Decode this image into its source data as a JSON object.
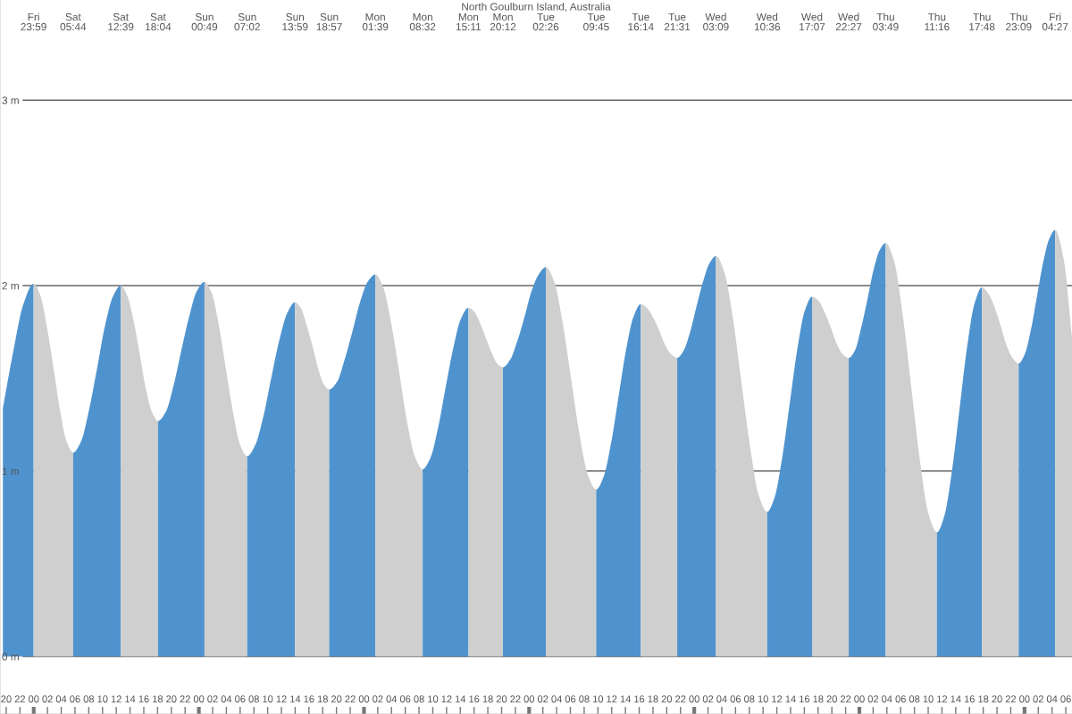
{
  "chart_data": {
    "type": "area",
    "title": "North Goulburn Island, Australia",
    "xlim": [
      19.1,
      174.9
    ],
    "ylim": [
      -0.31,
      3.54
    ],
    "xticks": [
      {
        "value": 20,
        "label": "20"
      },
      {
        "value": 22,
        "label": "22"
      },
      {
        "value": 24,
        "label": "00"
      },
      {
        "value": 26,
        "label": "02"
      },
      {
        "value": 28,
        "label": "04"
      },
      {
        "value": 30,
        "label": "06"
      },
      {
        "value": 32,
        "label": "08"
      },
      {
        "value": 34,
        "label": "10"
      },
      {
        "value": 36,
        "label": "12"
      },
      {
        "value": 38,
        "label": "14"
      },
      {
        "value": 40,
        "label": "16"
      },
      {
        "value": 42,
        "label": "18"
      },
      {
        "value": 44,
        "label": "20"
      },
      {
        "value": 46,
        "label": "22"
      },
      {
        "value": 48,
        "label": "00"
      },
      {
        "value": 50,
        "label": "02"
      },
      {
        "value": 52,
        "label": "04"
      },
      {
        "value": 54,
        "label": "06"
      },
      {
        "value": 56,
        "label": "08"
      },
      {
        "value": 58,
        "label": "10"
      },
      {
        "value": 60,
        "label": "12"
      },
      {
        "value": 62,
        "label": "14"
      },
      {
        "value": 64,
        "label": "16"
      },
      {
        "value": 66,
        "label": "18"
      },
      {
        "value": 68,
        "label": "20"
      },
      {
        "value": 70,
        "label": "22"
      },
      {
        "value": 72,
        "label": "00"
      },
      {
        "value": 74,
        "label": "02"
      },
      {
        "value": 76,
        "label": "04"
      },
      {
        "value": 78,
        "label": "06"
      },
      {
        "value": 80,
        "label": "08"
      },
      {
        "value": 82,
        "label": "10"
      },
      {
        "value": 84,
        "label": "12"
      },
      {
        "value": 86,
        "label": "14"
      },
      {
        "value": 88,
        "label": "16"
      },
      {
        "value": 90,
        "label": "18"
      },
      {
        "value": 92,
        "label": "20"
      },
      {
        "value": 94,
        "label": "22"
      },
      {
        "value": 96,
        "label": "00"
      },
      {
        "value": 98,
        "label": "02"
      },
      {
        "value": 100,
        "label": "04"
      },
      {
        "value": 102,
        "label": "06"
      },
      {
        "value": 104,
        "label": "08"
      },
      {
        "value": 106,
        "label": "10"
      },
      {
        "value": 108,
        "label": "12"
      },
      {
        "value": 110,
        "label": "14"
      },
      {
        "value": 112,
        "label": "16"
      },
      {
        "value": 114,
        "label": "18"
      },
      {
        "value": 116,
        "label": "20"
      },
      {
        "value": 118,
        "label": "22"
      },
      {
        "value": 120,
        "label": "00"
      },
      {
        "value": 122,
        "label": "02"
      },
      {
        "value": 124,
        "label": "04"
      },
      {
        "value": 126,
        "label": "06"
      },
      {
        "value": 128,
        "label": "08"
      },
      {
        "value": 130,
        "label": "10"
      },
      {
        "value": 132,
        "label": "12"
      },
      {
        "value": 134,
        "label": "14"
      },
      {
        "value": 136,
        "label": "16"
      },
      {
        "value": 138,
        "label": "18"
      },
      {
        "value": 140,
        "label": "20"
      },
      {
        "value": 142,
        "label": "22"
      },
      {
        "value": 144,
        "label": "00"
      },
      {
        "value": 146,
        "label": "02"
      },
      {
        "value": 148,
        "label": "04"
      },
      {
        "value": 150,
        "label": "06"
      },
      {
        "value": 152,
        "label": "08"
      },
      {
        "value": 154,
        "label": "10"
      },
      {
        "value": 156,
        "label": "12"
      },
      {
        "value": 158,
        "label": "14"
      },
      {
        "value": 160,
        "label": "16"
      },
      {
        "value": 162,
        "label": "18"
      },
      {
        "value": 164,
        "label": "20"
      },
      {
        "value": 166,
        "label": "22"
      },
      {
        "value": 168,
        "label": "00"
      },
      {
        "value": 170,
        "label": "02"
      },
      {
        "value": 172,
        "label": "04"
      },
      {
        "value": 174,
        "label": "06"
      }
    ],
    "yticks": [
      {
        "value": 0,
        "label": "0 m"
      },
      {
        "value": 1,
        "label": "1 m"
      },
      {
        "value": 2,
        "label": "2 m"
      },
      {
        "value": 3,
        "label": "3 m"
      }
    ],
    "grid": "y",
    "series": [
      {
        "color": "#4f93ce",
        "x": [
          19.52,
          21.0,
          22.5,
          23.98
        ],
        "values": [
          1.34,
          1.64,
          1.9,
          2.01
        ]
      },
      {
        "color": "#cfcfcf",
        "x": [
          23.98,
          24.94,
          25.9,
          26.86,
          27.81,
          28.77,
          29.73
        ],
        "values": [
          2.01,
          1.95,
          1.78,
          1.56,
          1.33,
          1.16,
          1.1
        ]
      },
      {
        "color": "#4f93ce",
        "x": [
          29.73,
          30.88,
          32.04,
          33.19,
          34.34,
          35.5,
          36.65
        ],
        "values": [
          1.1,
          1.16,
          1.33,
          1.55,
          1.78,
          1.94,
          2.0
        ]
      },
      {
        "color": "#cfcfcf",
        "x": [
          36.65,
          37.55,
          38.46,
          39.36,
          40.26,
          41.17,
          42.07
        ],
        "values": [
          2.0,
          1.95,
          1.82,
          1.64,
          1.45,
          1.32,
          1.27
        ]
      },
      {
        "color": "#4f93ce",
        "x": [
          42.07,
          43.2,
          44.32,
          45.45,
          46.57,
          47.7,
          48.82
        ],
        "values": [
          1.27,
          1.32,
          1.46,
          1.65,
          1.83,
          1.97,
          2.02
        ]
      },
      {
        "color": "#cfcfcf",
        "x": [
          48.82,
          49.86,
          50.89,
          51.93,
          52.96,
          54.0,
          55.03
        ],
        "values": [
          2.02,
          1.96,
          1.79,
          1.55,
          1.32,
          1.14,
          1.08
        ]
      },
      {
        "color": "#4f93ce",
        "x": [
          55.03,
          56.19,
          57.35,
          58.51,
          59.66,
          60.82,
          61.98
        ],
        "values": [
          1.08,
          1.14,
          1.29,
          1.5,
          1.7,
          1.85,
          1.91
        ]
      },
      {
        "color": "#cfcfcf",
        "x": [
          61.98,
          62.81,
          63.64,
          64.47,
          65.29,
          66.12,
          66.95
        ],
        "values": [
          1.91,
          1.88,
          1.79,
          1.68,
          1.56,
          1.47,
          1.44
        ]
      },
      {
        "color": "#4f93ce",
        "x": [
          66.95,
          68.07,
          69.18,
          70.3,
          71.42,
          72.53,
          73.65
        ],
        "values": [
          1.44,
          1.48,
          1.6,
          1.75,
          1.91,
          2.02,
          2.06
        ]
      },
      {
        "color": "#cfcfcf",
        "x": [
          73.65,
          74.8,
          75.94,
          77.09,
          78.24,
          79.38,
          80.53
        ],
        "values": [
          2.06,
          1.99,
          1.8,
          1.54,
          1.27,
          1.08,
          1.01
        ]
      },
      {
        "color": "#4f93ce",
        "x": [
          80.53,
          81.64,
          82.75,
          83.86,
          84.96,
          86.07,
          87.18
        ],
        "values": [
          1.01,
          1.07,
          1.23,
          1.45,
          1.66,
          1.82,
          1.88
        ]
      },
      {
        "color": "#cfcfcf",
        "x": [
          87.18,
          88.02,
          88.85,
          89.69,
          90.53,
          91.36,
          92.2
        ],
        "values": [
          1.88,
          1.86,
          1.8,
          1.72,
          1.64,
          1.58,
          1.56
        ]
      },
      {
        "color": "#4f93ce",
        "x": [
          92.2,
          93.24,
          94.28,
          95.32,
          96.35,
          97.39,
          98.43
        ],
        "values": [
          1.56,
          1.6,
          1.7,
          1.83,
          1.97,
          2.06,
          2.1
        ]
      },
      {
        "color": "#cfcfcf",
        "x": [
          98.43,
          99.65,
          100.87,
          102.09,
          103.31,
          104.53,
          105.75
        ],
        "values": [
          2.1,
          2.02,
          1.8,
          1.5,
          1.2,
          0.98,
          0.9
        ]
      },
      {
        "color": "#4f93ce",
        "x": [
          105.75,
          106.83,
          107.91,
          108.99,
          110.07,
          111.15,
          112.23
        ],
        "values": [
          0.9,
          0.97,
          1.15,
          1.4,
          1.65,
          1.83,
          1.9
        ]
      },
      {
        "color": "#cfcfcf",
        "x": [
          112.23,
          113.11,
          113.99,
          114.88,
          115.76,
          116.64,
          117.52
        ],
        "values": [
          1.9,
          1.88,
          1.83,
          1.76,
          1.68,
          1.63,
          1.61
        ]
      },
      {
        "color": "#4f93ce",
        "x": [
          117.52,
          118.46,
          119.4,
          120.34,
          121.27,
          122.21,
          123.15
        ],
        "values": [
          1.61,
          1.65,
          1.75,
          1.89,
          2.02,
          2.12,
          2.16
        ]
      },
      {
        "color": "#cfcfcf",
        "x": [
          123.15,
          124.39,
          125.63,
          126.88,
          128.12,
          129.36,
          130.6
        ],
        "values": [
          2.16,
          2.07,
          1.82,
          1.47,
          1.13,
          0.87,
          0.78
        ]
      },
      {
        "color": "#4f93ce",
        "x": [
          130.6,
          131.69,
          132.77,
          133.86,
          134.95,
          136.03,
          137.12
        ],
        "values": [
          0.78,
          0.86,
          1.07,
          1.36,
          1.65,
          1.86,
          1.94
        ]
      },
      {
        "color": "#cfcfcf",
        "x": [
          137.12,
          138.01,
          138.9,
          139.79,
          140.67,
          141.56,
          142.45
        ],
        "values": [
          1.94,
          1.92,
          1.86,
          1.78,
          1.69,
          1.63,
          1.61
        ]
      },
      {
        "color": "#4f93ce",
        "x": [
          142.45,
          143.35,
          144.24,
          145.14,
          146.03,
          146.93,
          147.82
        ],
        "values": [
          1.61,
          1.65,
          1.77,
          1.92,
          2.08,
          2.19,
          2.23
        ]
      },
      {
        "color": "#cfcfcf",
        "x": [
          147.82,
          149.06,
          150.3,
          151.55,
          152.79,
          154.03,
          155.27
        ],
        "values": [
          2.23,
          2.13,
          1.84,
          1.45,
          1.06,
          0.77,
          0.67
        ]
      },
      {
        "color": "#4f93ce",
        "x": [
          155.27,
          156.36,
          157.45,
          158.54,
          159.62,
          160.71,
          161.8
        ],
        "values": [
          0.67,
          0.76,
          1.0,
          1.33,
          1.66,
          1.9,
          1.99
        ]
      },
      {
        "color": "#cfcfcf",
        "x": [
          161.8,
          162.69,
          163.58,
          164.48,
          165.37,
          166.26,
          167.15
        ],
        "values": [
          1.99,
          1.96,
          1.89,
          1.79,
          1.68,
          1.61,
          1.58
        ]
      },
      {
        "color": "#4f93ce",
        "x": [
          167.15,
          168.03,
          168.92,
          169.8,
          170.68,
          171.57,
          172.45
        ],
        "values": [
          1.58,
          1.63,
          1.76,
          1.94,
          2.12,
          2.25,
          2.3
        ]
      },
      {
        "color": "#cfcfcf",
        "x": [
          172.45,
          173.7,
          174.9
        ],
        "values": [
          2.3,
          2.14,
          1.72
        ]
      }
    ],
    "annotations": [
      "Fri\n23:59",
      "Sat\n05:44",
      "Sat\n12:39",
      "Sat\n18:04",
      "Sun\n00:49",
      "Sun\n07:02",
      "Sun\n13:59",
      "Sun\n18:57",
      "Mon\n01:39",
      "Mon\n08:32",
      "Mon\n15:11",
      "Mon\n20:12",
      "Tue\n02:26",
      "Tue\n09:45",
      "Tue\n16:14",
      "Tue\n21:31",
      "Wed\n03:09",
      "Wed\n10:36",
      "Wed\n17:07",
      "Wed\n22:27",
      "Thu\n03:49",
      "Thu\n11:16",
      "Thu\n17:48",
      "Thu\n23:09",
      "Fri\n04:27"
    ]
  }
}
